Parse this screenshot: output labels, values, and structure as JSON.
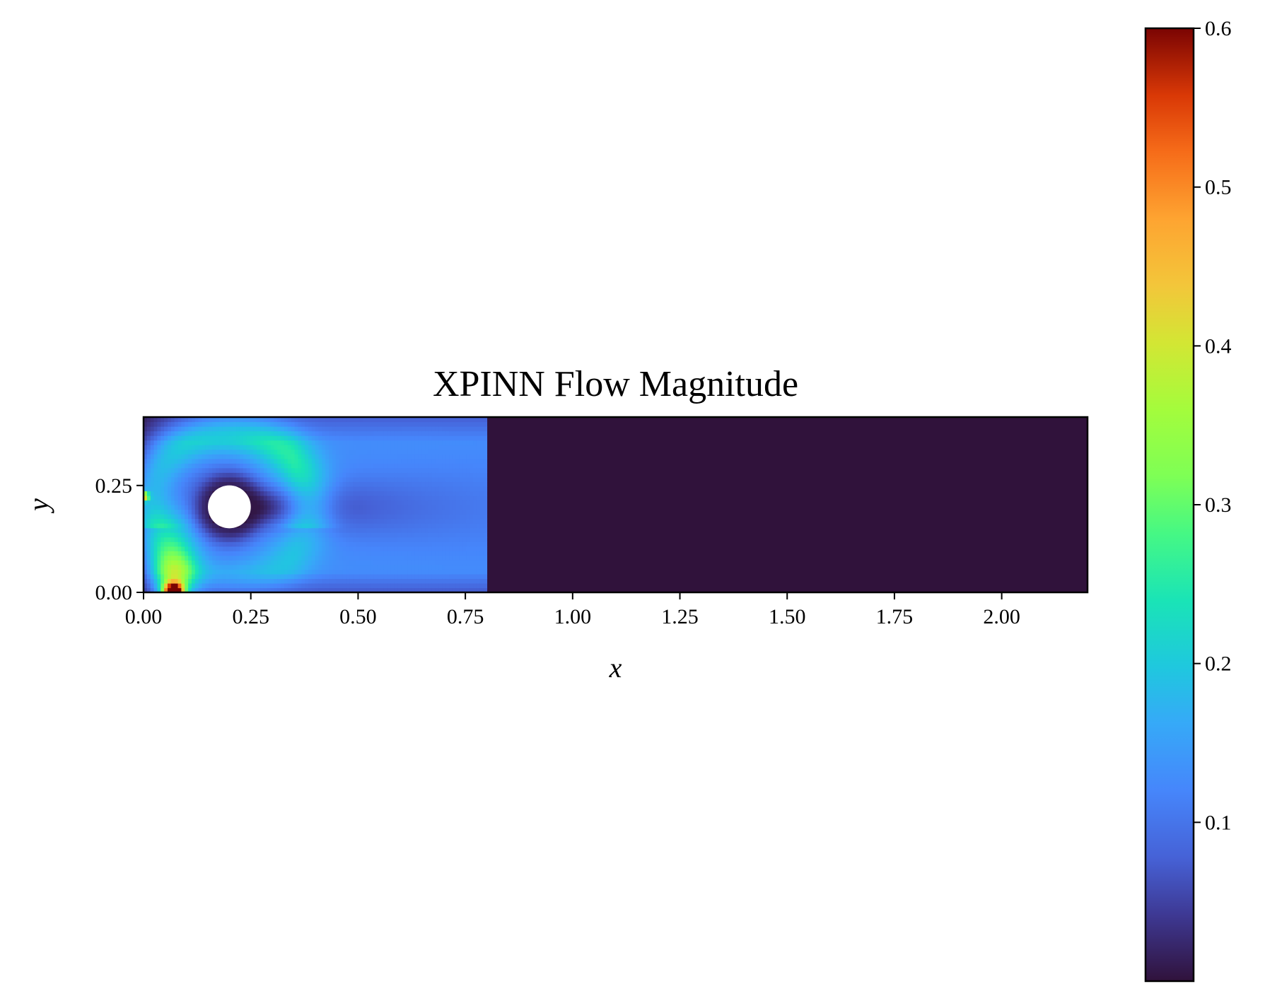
{
  "chart_data": {
    "type": "heatmap",
    "title": "XPINN Flow Magnitude",
    "xlabel": "x",
    "ylabel": "y",
    "xlim": [
      0.0,
      2.2
    ],
    "ylim": [
      0.0,
      0.41
    ],
    "x_ticks": [
      "0.00",
      "0.25",
      "0.50",
      "0.75",
      "1.00",
      "1.25",
      "1.50",
      "1.75",
      "2.00"
    ],
    "y_ticks": [
      "0.00",
      "0.25"
    ],
    "colormap": "turbo",
    "colorbar": {
      "range": [
        0.0,
        0.6
      ],
      "ticks": [
        "0.1",
        "0.2",
        "0.3",
        "0.4",
        "0.5",
        "0.6"
      ],
      "placement": "right"
    },
    "obstacle": {
      "shape": "circle",
      "center": [
        0.2,
        0.2
      ],
      "radius": 0.05
    },
    "solution_region_x": [
      0.0,
      0.8
    ],
    "background_value": 0.0,
    "grid": false
  }
}
